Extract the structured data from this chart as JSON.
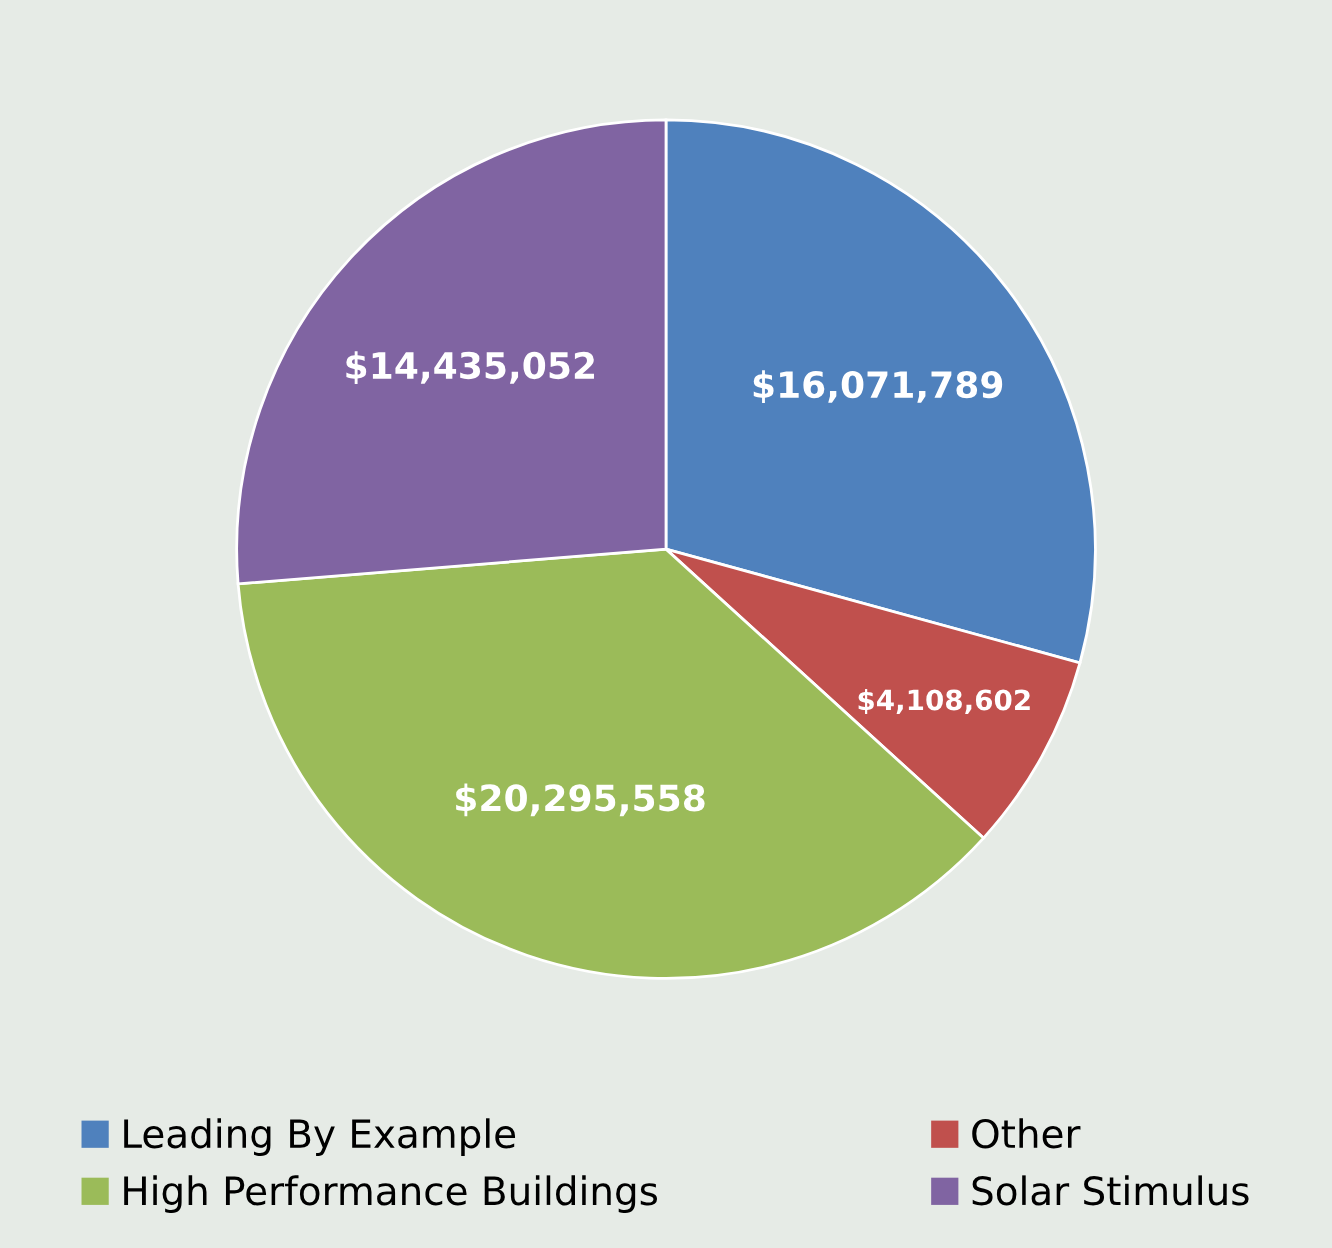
{
  "chart_data": {
    "type": "pie",
    "categories": [
      "Leading By Example",
      "Other",
      "High Performance Buildings",
      "Solar Stimulus"
    ],
    "values": [
      16071789,
      4108602,
      20295558,
      14435052
    ],
    "colors": [
      "#4f81bd",
      "#c0504d",
      "#9bbb59",
      "#8064a2"
    ],
    "value_labels": [
      "$16,071,789",
      "$4,108,602",
      "$20,295,558",
      "$14,435,052"
    ],
    "legend": "bottom"
  }
}
